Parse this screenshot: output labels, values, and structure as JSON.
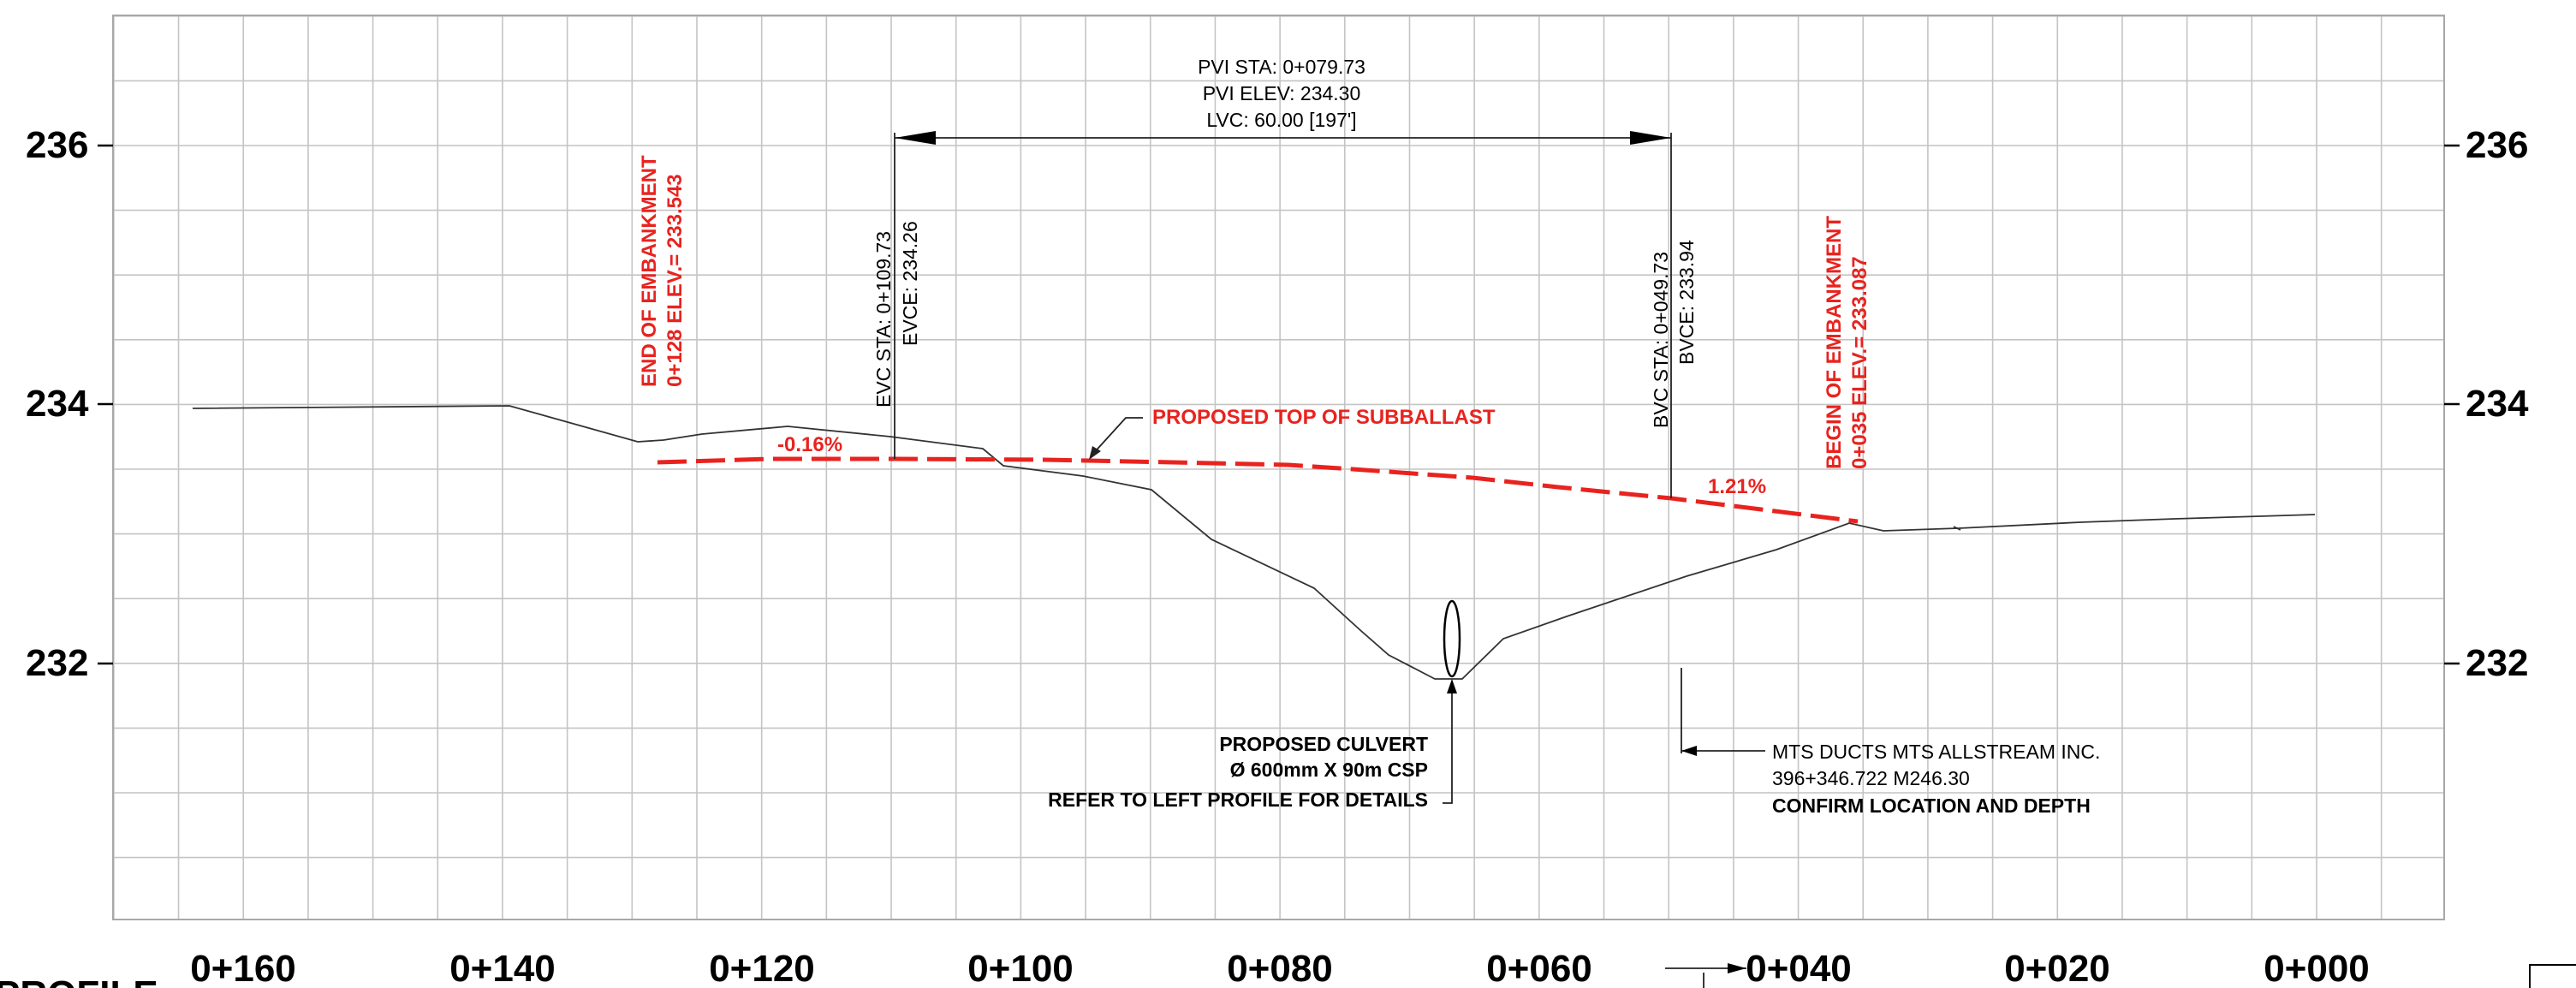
{
  "stations": [
    "0+160",
    "0+140",
    "0+120",
    "0+100",
    "0+080",
    "0+060",
    "0+040",
    "0+020",
    "0+000"
  ],
  "elevations": [
    "236",
    "234",
    "232"
  ],
  "pvi": {
    "line1": "PVI STA: 0+079.73",
    "line2": "PVI ELEV: 234.30",
    "line3": "LVC: 60.00 [197']"
  },
  "evc": {
    "line1": "EVC STA: 0+109.73",
    "line2": "EVCE: 234.26"
  },
  "bvc": {
    "line1": "BVC STA: 0+049.73",
    "line2": "BVCE: 233.94"
  },
  "end_embankment": {
    "line1": "END OF EMBANKMENT",
    "line2": "0+128 ELEV.= 233.543"
  },
  "begin_embankment": {
    "line1": "BEGIN OF EMBANKMENT",
    "line2": "0+035 ELEV.= 233.087"
  },
  "proposed_label": "PROPOSED TOP OF SUBBALLAST",
  "grade_left": "-0.16%",
  "grade_right": "1.21%",
  "culvert": {
    "line1": "PROPOSED CULVERT",
    "line2": "Ø 600mm X 90m CSP",
    "line3": "REFER TO LEFT PROFILE FOR DETAILS"
  },
  "mts": {
    "line1": "MTS DUCTS MTS ALLSTREAM INC.",
    "line2": "396+346.722 M246.30",
    "line3": "CONFIRM LOCATION AND DEPTH"
  },
  "bottom_cut_label": "PROFILE",
  "colors": {
    "proposed": "#e8231f",
    "grid": "#c4c4c4",
    "text": "#000000"
  }
}
